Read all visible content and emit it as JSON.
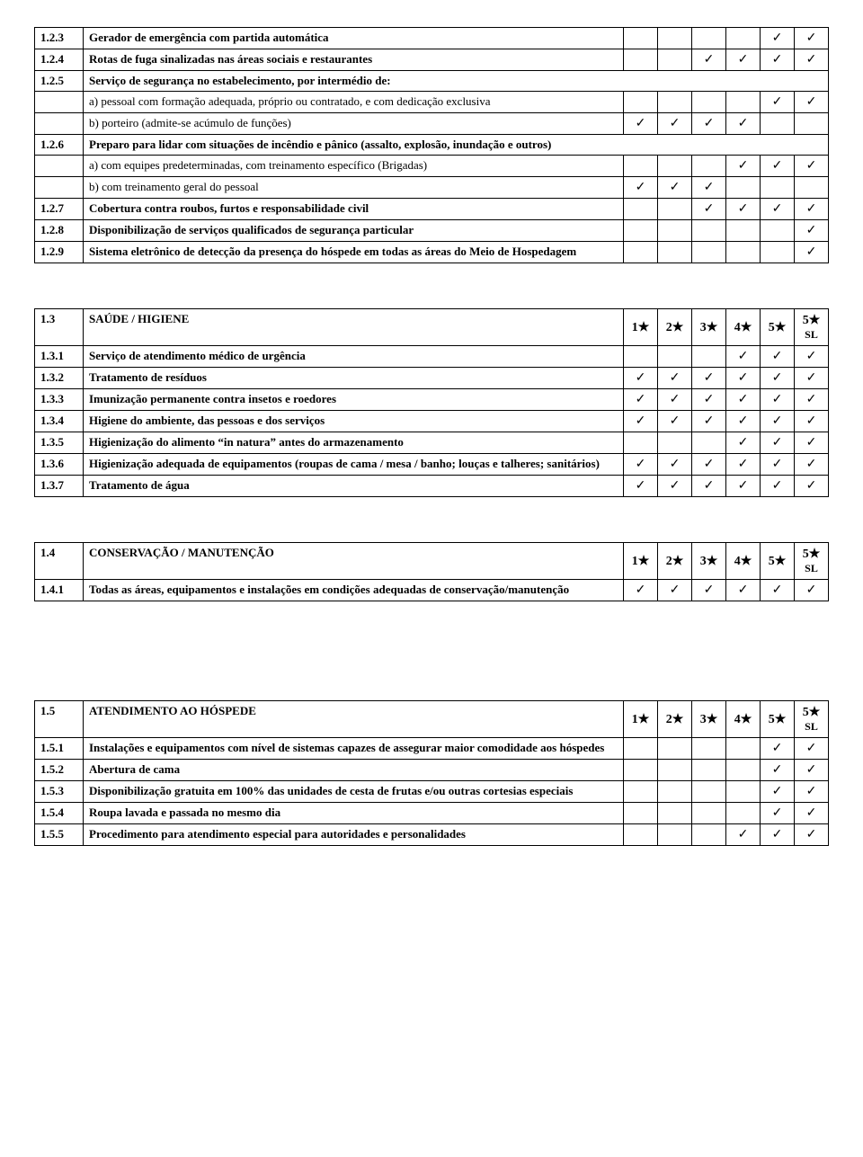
{
  "symbols": {
    "check": "✓",
    "star": "★"
  },
  "tables": [
    {
      "header": null,
      "fullrow_after": null,
      "rows": [
        {
          "code": "1.2.3",
          "desc": "Gerador de emergência com partida automática",
          "bold": true,
          "checks": [
            "",
            "",
            "",
            "",
            "✓",
            "✓"
          ]
        },
        {
          "code": "1.2.4",
          "desc": "Rotas de fuga sinalizadas nas áreas sociais e restaurantes",
          "bold": true,
          "checks": [
            "",
            "",
            "✓",
            "✓",
            "✓",
            "✓"
          ]
        },
        {
          "code": "1.2.5",
          "desc": "Serviço de segurança no estabelecimento, por intermédio de:",
          "bold": true,
          "span": true
        },
        {
          "code": "",
          "desc": "a) pessoal com formação adequada, próprio ou contratado, e com dedicação exclusiva",
          "bold": false,
          "checks": [
            "",
            "",
            "",
            "",
            "✓",
            "✓"
          ]
        },
        {
          "code": "",
          "desc": "b) porteiro (admite-se acúmulo de funções)",
          "bold": false,
          "checks": [
            "✓",
            "✓",
            "✓",
            "✓",
            "",
            ""
          ]
        },
        {
          "code": "1.2.6",
          "desc": "Preparo para lidar com situações de incêndio e pânico (assalto, explosão, inundação e outros)",
          "bold": true,
          "span": true
        },
        {
          "code": "",
          "desc": "a) com equipes predeterminadas, com treinamento específico (Brigadas)",
          "bold": false,
          "checks": [
            "",
            "",
            "",
            "✓",
            "✓",
            "✓"
          ]
        },
        {
          "code": "",
          "desc": "b) com treinamento geral do pessoal",
          "bold": false,
          "checks": [
            "✓",
            "✓",
            "✓",
            "",
            "",
            ""
          ]
        },
        {
          "code": "1.2.7",
          "desc": "Cobertura contra roubos, furtos e responsabilidade civil",
          "bold": true,
          "checks": [
            "",
            "",
            "✓",
            "✓",
            "✓",
            "✓"
          ]
        },
        {
          "code": "1.2.8",
          "desc": "Disponibilização de serviços qualificados  de segurança particular",
          "bold": true,
          "checks": [
            "",
            "",
            "",
            "",
            "",
            "✓"
          ]
        },
        {
          "code": "1.2.9",
          "desc": "Sistema eletrônico de detecção da presença do hóspede em todas as áreas do Meio de Hospedagem",
          "bold": true,
          "checks": [
            "",
            "",
            "",
            "",
            "",
            "✓"
          ]
        }
      ]
    },
    {
      "header": {
        "code": "1.3",
        "title": "SAÚDE / HIGIENE",
        "cols": [
          "1★",
          "2★",
          "3★",
          "4★",
          "5★",
          "5★\nSL"
        ]
      },
      "rows": [
        {
          "code": "1.3.1",
          "desc": "Serviço de atendimento médico de urgência",
          "bold": true,
          "checks": [
            "",
            "",
            "",
            "✓",
            "✓",
            "✓"
          ]
        },
        {
          "code": "1.3.2",
          "desc": "Tratamento de resíduos",
          "bold": true,
          "checks": [
            "✓",
            "✓",
            "✓",
            "✓",
            "✓",
            "✓"
          ]
        },
        {
          "code": "1.3.3",
          "desc": "Imunização permanente contra insetos e roedores",
          "bold": true,
          "checks": [
            "✓",
            "✓",
            "✓",
            "✓",
            "✓",
            "✓"
          ]
        },
        {
          "code": "1.3.4",
          "desc": "Higiene do ambiente, das pessoas e dos serviços",
          "bold": true,
          "checks": [
            "✓",
            "✓",
            "✓",
            "✓",
            "✓",
            "✓"
          ]
        },
        {
          "code": "1.3.5",
          "desc": "Higienização do alimento “in natura” antes do armazenamento",
          "bold": true,
          "checks": [
            "",
            "",
            "",
            "✓",
            "✓",
            "✓"
          ]
        },
        {
          "code": "1.3.6",
          "desc": "Higienização adequada de equipamentos (roupas de cama / mesa / banho; louças e talheres; sanitários)",
          "bold": true,
          "checks": [
            "✓",
            "✓",
            "✓",
            "✓",
            "✓",
            "✓"
          ]
        },
        {
          "code": "1.3.7",
          "desc": "Tratamento de água",
          "bold": true,
          "checks": [
            "✓",
            "✓",
            "✓",
            "✓",
            "✓",
            "✓"
          ]
        }
      ]
    },
    {
      "header": {
        "code": "1.4",
        "title": "CONSERVAÇÃO / MANUTENÇÃO",
        "cols": [
          "1★",
          "2★",
          "3★",
          "4★",
          "5★",
          "5★\nSL"
        ]
      },
      "rows": [
        {
          "code": "1.4.1",
          "desc": "Todas as áreas, equipamentos e instalações em condições adequadas de conservação/manutenção",
          "bold": true,
          "checks": [
            "✓",
            "✓",
            "✓",
            "✓",
            "✓",
            "✓"
          ]
        }
      ]
    },
    {
      "header": {
        "code": "1.5",
        "title": "ATENDIMENTO AO HÓSPEDE",
        "cols": [
          "1★",
          "2★",
          "3★",
          "4★",
          "5★",
          "5★\nSL"
        ]
      },
      "rows": [
        {
          "code": "1.5.1",
          "desc": "Instalações e equipamentos com nível de sistemas capazes de assegurar maior comodidade aos hóspedes",
          "bold": true,
          "checks": [
            "",
            "",
            "",
            "",
            "✓",
            "✓"
          ]
        },
        {
          "code": "1.5.2",
          "desc": "Abertura de cama",
          "bold": true,
          "checks": [
            "",
            "",
            "",
            "",
            "✓",
            "✓"
          ]
        },
        {
          "code": "1.5.3",
          "desc": "Disponibilização gratuita em 100% das unidades de cesta de frutas e/ou outras cortesias especiais",
          "bold": true,
          "checks": [
            "",
            "",
            "",
            "",
            "✓",
            "✓"
          ]
        },
        {
          "code": "1.5.4",
          "desc": "Roupa lavada e passada no mesmo dia",
          "bold": true,
          "checks": [
            "",
            "",
            "",
            "",
            "✓",
            "✓"
          ]
        },
        {
          "code": "1.5.5",
          "desc": "Procedimento para  atendimento especial para autoridades e personalidades",
          "bold": true,
          "checks": [
            "",
            "",
            "",
            "✓",
            "✓",
            "✓"
          ]
        }
      ],
      "extra_margin_top": 110
    }
  ]
}
